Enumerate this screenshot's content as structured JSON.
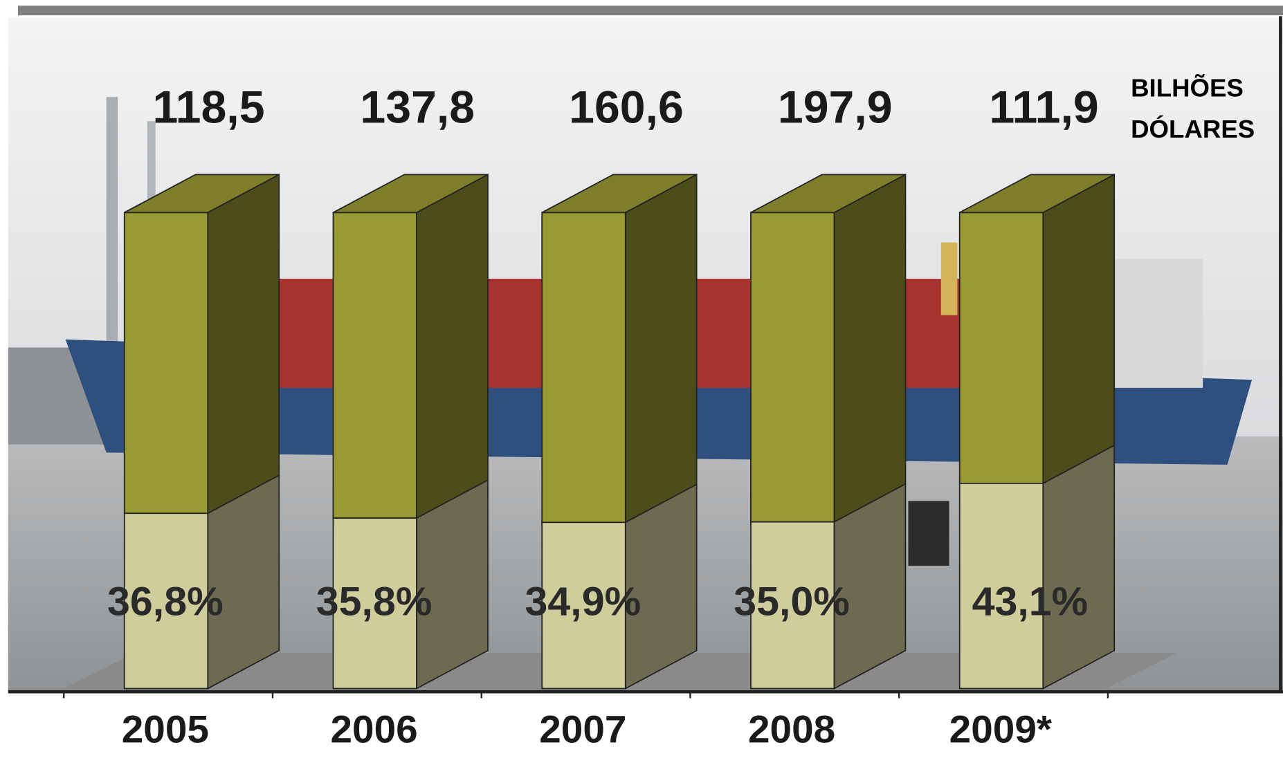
{
  "chart_data": {
    "type": "bar",
    "categories": [
      "2005",
      "2006",
      "2007",
      "2008",
      "2009*"
    ],
    "totals": {
      "values": [
        118.5,
        137.8,
        160.6,
        197.9,
        111.9
      ],
      "value_labels": [
        "118,5",
        "137,8",
        "160,6",
        "197,9",
        "111,9"
      ]
    },
    "unit_label": [
      "BILHÕES",
      "DÓLARES"
    ],
    "series": [
      {
        "color": "#cfcd9c",
        "values": [
          36.8,
          35.8,
          34.9,
          35.0,
          43.1
        ],
        "value_labels": [
          "36,8%",
          "35,8%",
          "34,9%",
          "35,0%",
          "43,1%"
        ]
      }
    ],
    "remainder_color": "#9a9a35",
    "ylim": [
      0,
      100
    ]
  }
}
